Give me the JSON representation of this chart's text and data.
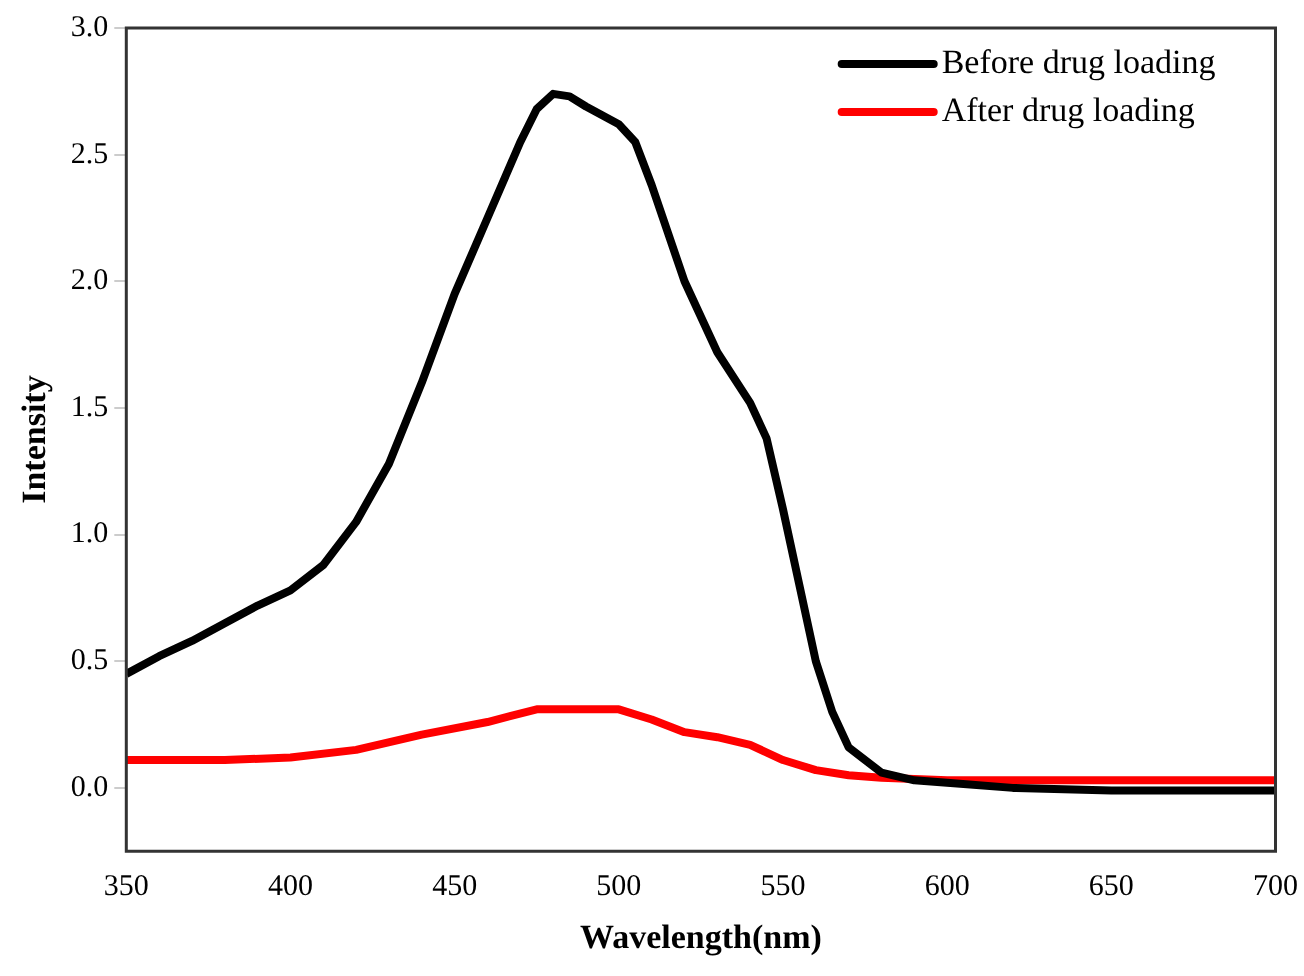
{
  "chart_data": {
    "type": "line",
    "xlabel": "Wavelength(nm)",
    "ylabel": "Intensity",
    "xlim": [
      350,
      700
    ],
    "xticks": [
      350,
      400,
      450,
      500,
      550,
      600,
      650,
      700
    ],
    "ylim": [
      -0.25,
      3.0
    ],
    "yticks": [
      {
        "value": 0,
        "label": "0.0"
      },
      0.5,
      {
        "value": 1,
        "label": "1.0"
      },
      1.5,
      {
        "value": 2,
        "label": "2.0"
      },
      2.5,
      {
        "value": 3,
        "label": "3.0"
      }
    ],
    "legend": "top right",
    "grid": false,
    "marker": "none",
    "line_style": "solid",
    "series": [
      {
        "name": "Before drug loading",
        "color": "#000000",
        "x": [
          350,
          360,
          370,
          380,
          390,
          400,
          410,
          420,
          430,
          440,
          450,
          460,
          470,
          475,
          480,
          485,
          490,
          500,
          505,
          510,
          520,
          530,
          540,
          545,
          550,
          555,
          560,
          565,
          570,
          580,
          590,
          600,
          620,
          650,
          700
        ],
        "values": [
          0.45,
          0.52,
          0.58,
          0.65,
          0.72,
          0.78,
          0.88,
          1.05,
          1.28,
          1.6,
          1.95,
          2.25,
          2.55,
          2.68,
          2.74,
          2.73,
          2.69,
          2.62,
          2.55,
          2.38,
          2.0,
          1.72,
          1.52,
          1.38,
          1.1,
          0.8,
          0.5,
          0.3,
          0.16,
          0.06,
          0.03,
          0.02,
          0.0,
          -0.01,
          -0.01
        ]
      },
      {
        "name": "After drug loading",
        "color": "#ff0000",
        "x": [
          350,
          380,
          400,
          420,
          440,
          460,
          475,
          490,
          500,
          510,
          520,
          530,
          540,
          550,
          560,
          570,
          580,
          600,
          650,
          700
        ],
        "values": [
          0.11,
          0.11,
          0.12,
          0.15,
          0.21,
          0.26,
          0.31,
          0.31,
          0.31,
          0.27,
          0.22,
          0.2,
          0.17,
          0.11,
          0.07,
          0.05,
          0.04,
          0.03,
          0.03,
          0.03
        ]
      }
    ]
  }
}
